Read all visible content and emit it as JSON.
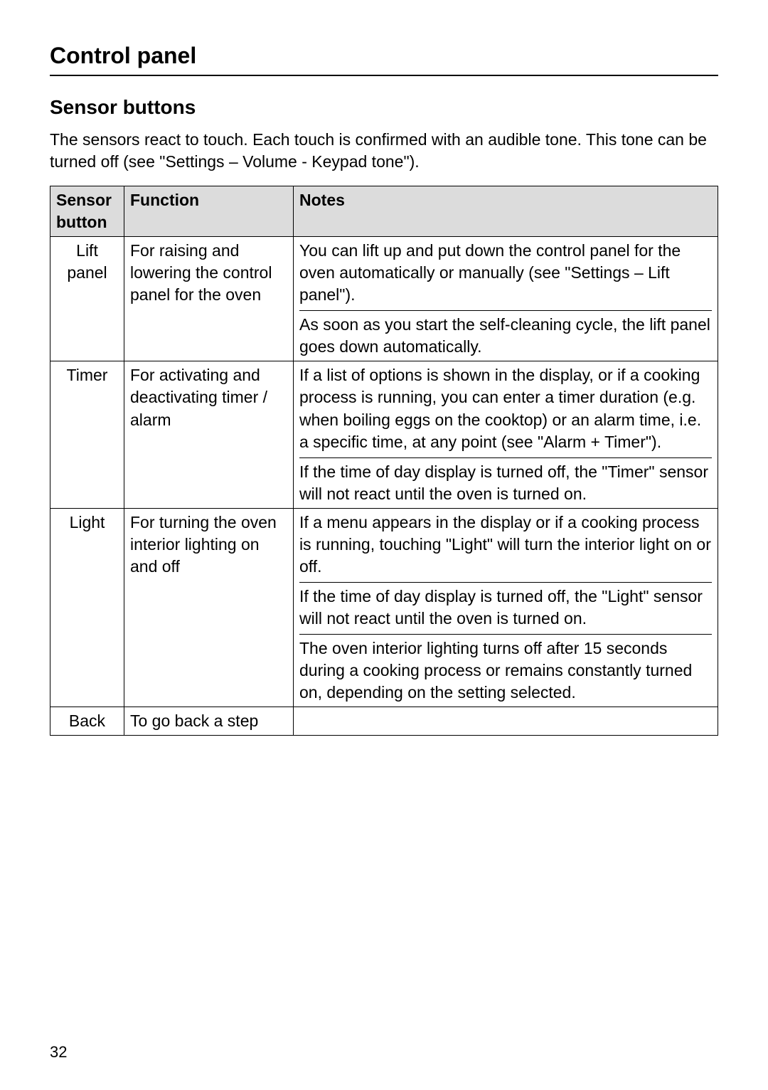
{
  "pageTitle": "Control panel",
  "sectionHeading": "Sensor buttons",
  "introText": "The sensors react to touch. Each touch is confirmed with an audible tone. This tone can be turned off (see \"Settings – Volume - Keypad tone\").",
  "table": {
    "headers": {
      "col1": "Sensor button",
      "col2": "Function",
      "col3": "Notes"
    },
    "rows": {
      "liftPanel": {
        "sensor": "Lift panel",
        "function": "For raising and lowering the control panel for the oven",
        "note1": "You can lift up and put down the control panel for the oven automatically or manually (see \"Settings – Lift panel\").",
        "note2": "As soon as you start the self-cleaning cycle, the lift panel goes down automatically."
      },
      "timer": {
        "sensor": "Timer",
        "function": "For activating and deactivating timer / alarm",
        "note1": "If a list of options is shown in the display, or if a cooking process is running, you can enter a timer duration (e.g. when boiling eggs on the cooktop) or an alarm time, i.e. a specific time, at any point (see \"Alarm + Timer\").",
        "note2": "If the time of day display is turned off, the \"Timer\" sensor will not react until the oven is turned on."
      },
      "light": {
        "sensor": "Light",
        "function": "For turning the oven interior lighting on and off",
        "note1": "If a menu appears in the display or if a cooking process is running, touching \"Light\" will turn the interior light on or off.",
        "note2": "If the time of day display is turned off, the \"Light\" sensor will not react until the oven is turned on.",
        "note3": "The oven interior lighting turns off after 15 seconds during a cooking process or remains constantly turned on, depending on the setting selected."
      },
      "back": {
        "sensor": "Back",
        "function": "To go back a step",
        "note": ""
      }
    }
  },
  "pageNumber": "32"
}
